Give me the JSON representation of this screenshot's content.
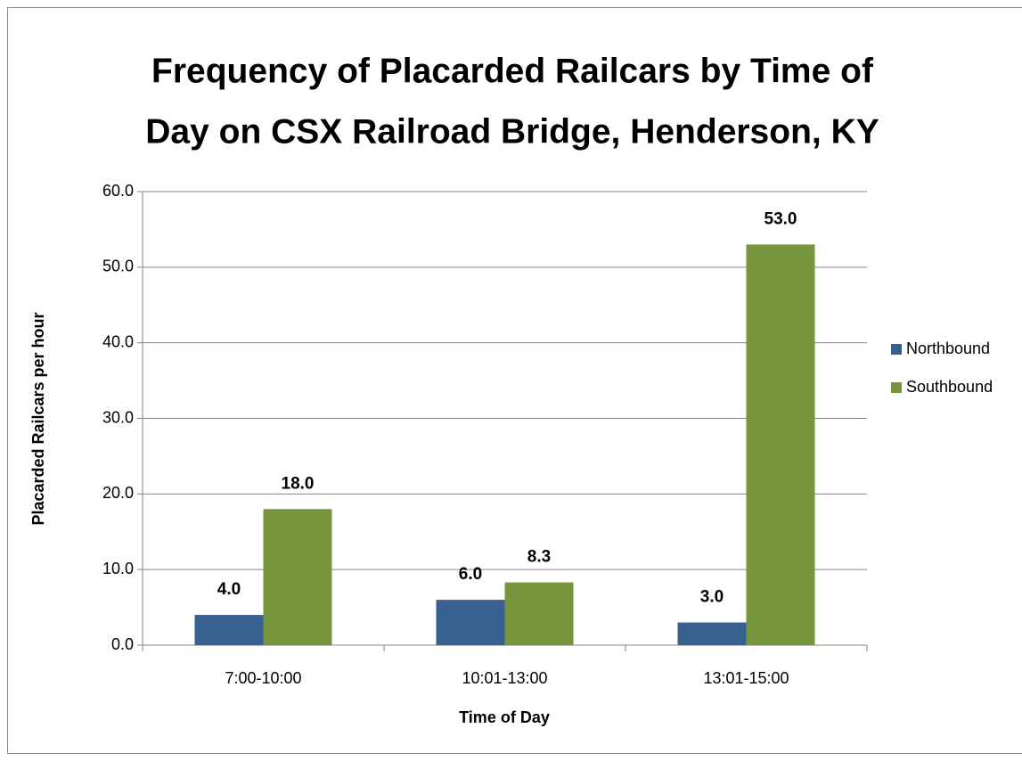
{
  "chart_data": {
    "type": "bar",
    "title": [
      "Frequency of Placarded Railcars by Time of",
      "Day on CSX Railroad Bridge, Henderson, KY"
    ],
    "x_label": "Time of Day",
    "y_label": "Placarded Railcars per hour",
    "categories": [
      "7:00-10:00",
      "10:01-13:00",
      "13:01-15:00"
    ],
    "series": [
      {
        "name": "Northbound",
        "color": "#386192",
        "values": [
          4,
          6,
          3
        ],
        "value_labels": [
          "4.0",
          "6.0",
          "3.0"
        ]
      },
      {
        "name": "Southbound",
        "color": "#77953d",
        "values": [
          18,
          8.3,
          53
        ],
        "value_labels": [
          "18.0",
          "8.3",
          "53.0"
        ]
      }
    ],
    "ylim": [
      0,
      60
    ],
    "yticks": [
      {
        "value": 0,
        "label": "0.0"
      },
      {
        "value": 10,
        "label": "10.0"
      },
      {
        "value": 20,
        "label": "20.0"
      },
      {
        "value": 30,
        "label": "30.0"
      },
      {
        "value": 40,
        "label": "40.0"
      },
      {
        "value": 50,
        "label": "50.0"
      },
      {
        "value": 60,
        "label": "60.0"
      }
    ],
    "grid": true,
    "legend": "right"
  }
}
